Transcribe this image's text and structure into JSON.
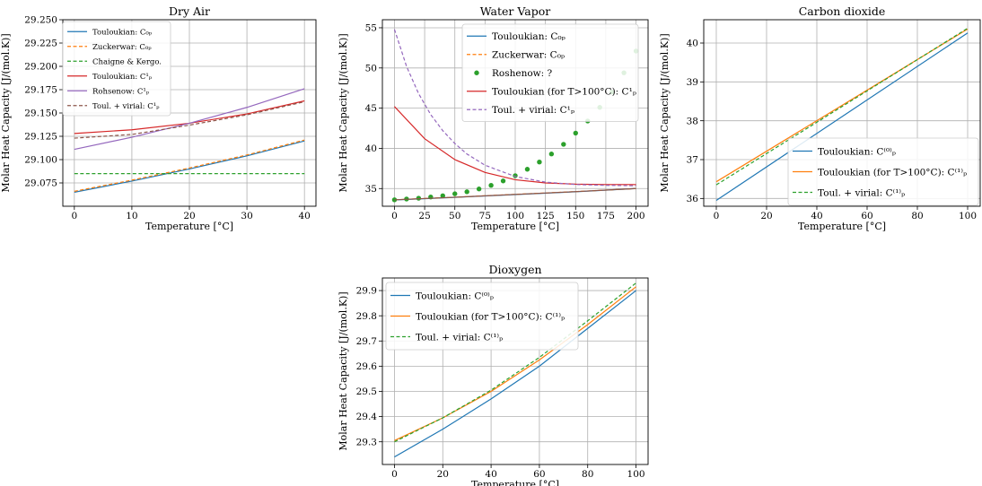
{
  "page": {
    "panels": [
      "Dry Air",
      "Water Vapor",
      "Carbon dioxide",
      "Dioxygen"
    ]
  },
  "chart_data": [
    {
      "type": "line",
      "title": "Dry Air",
      "xlabel": "Temperature [°C]",
      "ylabel": "Molar Heat Capacity [J/(mol.K)]",
      "xlim": [
        -2,
        42
      ],
      "ylim": [
        29.05,
        29.25
      ],
      "xticks": [
        0,
        10,
        20,
        30,
        40
      ],
      "yticks": [
        29.075,
        29.1,
        29.125,
        29.15,
        29.175,
        29.2,
        29.225,
        29.25
      ],
      "ytick_labels": [
        "29.075",
        "29.100",
        "29.125",
        "29.150",
        "29.175",
        "29.200",
        "29.225",
        "29.250"
      ],
      "grid": true,
      "legend": {
        "placement": "upper-left",
        "size": "small"
      },
      "series": [
        {
          "name": "Touloukian: C₀ₚ",
          "color": "#1f77b4",
          "style": "solid",
          "x": [
            0,
            10,
            20,
            30,
            40
          ],
          "y": [
            29.065,
            29.077,
            29.09,
            29.104,
            29.12
          ]
        },
        {
          "name": "Zuckerwar: C₀ₚ",
          "color": "#ff7f0e",
          "style": "dashed",
          "x": [
            0,
            10,
            20,
            30,
            40
          ],
          "y": [
            29.066,
            29.078,
            29.091,
            29.105,
            29.121
          ]
        },
        {
          "name": "Chaigne & Kergo.",
          "color": "#2ca02c",
          "style": "dashed",
          "x": [
            0,
            40
          ],
          "y": [
            29.085,
            29.085
          ]
        },
        {
          "name": "Touloukian: C¹ₚ",
          "color": "#d62728",
          "style": "solid",
          "x": [
            0,
            10,
            20,
            30,
            40
          ],
          "y": [
            29.128,
            29.132,
            29.139,
            29.149,
            29.163
          ]
        },
        {
          "name": "Rohsenow: C¹ₚ",
          "color": "#9467bd",
          "style": "solid",
          "x": [
            0,
            10,
            20,
            30,
            40
          ],
          "y": [
            29.111,
            29.124,
            29.139,
            29.156,
            29.176
          ]
        },
        {
          "name": "Toul. + virial: C¹ₚ",
          "color": "#8c564b",
          "style": "dashed",
          "x": [
            0,
            10,
            20,
            30,
            40
          ],
          "y": [
            29.123,
            29.127,
            29.137,
            29.148,
            29.162
          ]
        }
      ]
    },
    {
      "type": "line",
      "title": "Water Vapor",
      "xlabel": "Temperature [°C]",
      "ylabel": "Molar Heat Capacity [J/(mol.K)]",
      "xlim": [
        -10,
        210
      ],
      "ylim": [
        32.8,
        56
      ],
      "xticks": [
        0,
        25,
        50,
        75,
        100,
        125,
        150,
        175,
        200
      ],
      "yticks": [
        35,
        40,
        45,
        50,
        55
      ],
      "ytick_labels": [
        "35",
        "40",
        "45",
        "50",
        "55"
      ],
      "grid": true,
      "legend": {
        "placement": "upper-right",
        "size": "normal"
      },
      "series": [
        {
          "name": "Touloukian: C₀ₚ",
          "color": "#1f77b4",
          "style": "solid",
          "x": [
            0,
            50,
            100,
            150,
            200
          ],
          "y": [
            33.58,
            33.9,
            34.25,
            34.6,
            35.0
          ]
        },
        {
          "name": "Zuckerwar: C₀ₚ",
          "color": "#ff7f0e",
          "style": "dashed",
          "x": [
            0,
            50,
            100,
            150,
            200
          ],
          "y": [
            33.6,
            33.92,
            34.28,
            34.62,
            35.0
          ]
        },
        {
          "name": "Roshenow: ?",
          "color": "#2ca02c",
          "style": "markers",
          "x": [
            0,
            10,
            20,
            30,
            40,
            50,
            60,
            70,
            80,
            90,
            100,
            110,
            120,
            130,
            140,
            150,
            160,
            170,
            180,
            190,
            200
          ],
          "y": [
            33.6,
            33.7,
            33.8,
            33.95,
            34.1,
            34.35,
            34.6,
            34.95,
            35.4,
            35.95,
            36.6,
            37.4,
            38.3,
            39.3,
            40.5,
            41.9,
            43.4,
            45.1,
            47.0,
            49.4,
            52.1
          ]
        },
        {
          "name": "Touloukian (for T>100°C): C¹ₚ",
          "color": "#d62728",
          "style": "solid",
          "x": [
            0,
            25,
            50,
            75,
            100,
            125,
            150,
            175,
            200
          ],
          "y": [
            45.2,
            41.2,
            38.6,
            37.0,
            36.1,
            35.7,
            35.55,
            35.5,
            35.5
          ]
        },
        {
          "name": "Toul. + virial: C¹ₚ",
          "color": "#9467bd",
          "style": "dashed",
          "x": [
            0,
            10,
            20,
            30,
            40,
            50,
            60,
            75,
            100,
            125,
            150,
            175,
            200
          ],
          "y": [
            54.8,
            50.2,
            46.8,
            44.2,
            42.2,
            40.6,
            39.3,
            37.9,
            36.5,
            35.8,
            35.5,
            35.4,
            35.35
          ]
        },
        {
          "name": "",
          "color": "#8c564b",
          "style": "solid",
          "x": [
            0,
            50,
            100,
            150,
            200
          ],
          "y": [
            33.6,
            33.92,
            34.27,
            34.62,
            35.0
          ]
        }
      ]
    },
    {
      "type": "line",
      "title": "Carbon dioxide",
      "xlabel": "Temperature [°C]",
      "ylabel": "Molar Heat Capacity [J/(mol.K)]",
      "xlim": [
        -5,
        105
      ],
      "ylim": [
        35.8,
        40.6
      ],
      "xticks": [
        0,
        20,
        40,
        60,
        80,
        100
      ],
      "yticks": [
        36,
        37,
        38,
        39,
        40
      ],
      "ytick_labels": [
        "36",
        "37",
        "38",
        "39",
        "40"
      ],
      "grid": true,
      "legend": {
        "placement": "center-right",
        "size": "normal"
      },
      "series": [
        {
          "name": "Touloukian: C⁽⁰⁾ₚ",
          "color": "#1f77b4",
          "style": "solid",
          "x": [
            0,
            100
          ],
          "y": [
            35.95,
            40.26
          ]
        },
        {
          "name": "Touloukian (for T>100°C): C⁽¹⁾ₚ",
          "color": "#ff7f0e",
          "style": "solid",
          "x": [
            0,
            100
          ],
          "y": [
            36.43,
            40.36
          ]
        },
        {
          "name": "Toul. + virial: C⁽¹⁾ₚ",
          "color": "#2ca02c",
          "style": "dashed",
          "x": [
            0,
            100
          ],
          "y": [
            36.35,
            40.38
          ]
        }
      ]
    },
    {
      "type": "line",
      "title": "Dioxygen",
      "xlabel": "Temperature [°C]",
      "ylabel": "Molar Heat Capacity [J/(mol.K)]",
      "xlim": [
        -5,
        105
      ],
      "ylim": [
        29.21,
        29.95
      ],
      "xticks": [
        0,
        20,
        40,
        60,
        80,
        100
      ],
      "yticks": [
        29.3,
        29.4,
        29.5,
        29.6,
        29.7,
        29.8,
        29.9
      ],
      "ytick_labels": [
        "29.3",
        "29.4",
        "29.5",
        "29.6",
        "29.7",
        "29.8",
        "29.9"
      ],
      "grid": true,
      "legend": {
        "placement": "upper-left",
        "size": "normal"
      },
      "series": [
        {
          "name": "Touloukian: C⁽⁰⁾ₚ",
          "color": "#1f77b4",
          "style": "solid",
          "x": [
            0,
            20,
            40,
            60,
            80,
            100
          ],
          "y": [
            29.24,
            29.35,
            29.47,
            29.6,
            29.75,
            29.9
          ]
        },
        {
          "name": "Touloukian (for T>100°C): C⁽¹⁾ₚ",
          "color": "#ff7f0e",
          "style": "solid",
          "x": [
            0,
            20,
            40,
            60,
            80,
            100
          ],
          "y": [
            29.305,
            29.395,
            29.5,
            29.625,
            29.765,
            29.915
          ]
        },
        {
          "name": "Toul. + virial: C⁽¹⁾ₚ",
          "color": "#2ca02c",
          "style": "dashed",
          "x": [
            0,
            20,
            40,
            60,
            80,
            100
          ],
          "y": [
            29.3,
            29.395,
            29.505,
            29.635,
            29.78,
            29.93
          ]
        }
      ]
    }
  ]
}
